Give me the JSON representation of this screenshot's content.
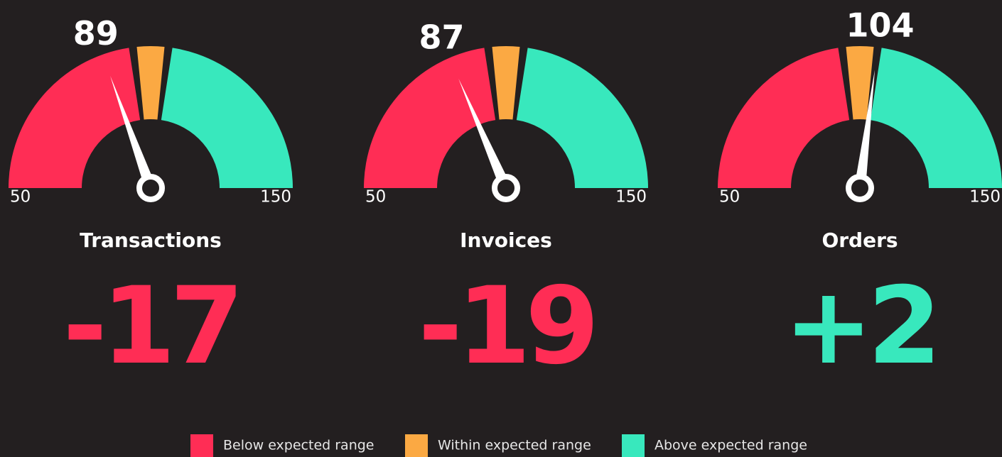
{
  "chart_data": {
    "type": "gauge",
    "range": [
      50,
      150
    ],
    "bands": [
      {
        "name": "Below expected range",
        "color": "#ff2d55",
        "range": [
          50,
          96
        ]
      },
      {
        "name": "Within expected range",
        "color": "#fba943",
        "range": [
          96,
          104
        ]
      },
      {
        "name": "Above expected range",
        "color": "#38e8bd",
        "range": [
          104,
          150
        ]
      }
    ],
    "gauges": [
      {
        "title": "Transactions",
        "value": 89,
        "delta": -17,
        "delta_label": "-17"
      },
      {
        "title": "Invoices",
        "value": 87,
        "delta": -19,
        "delta_label": "-19"
      },
      {
        "title": "Orders",
        "value": 104,
        "delta": 2,
        "delta_label": "+2"
      }
    ]
  }
}
